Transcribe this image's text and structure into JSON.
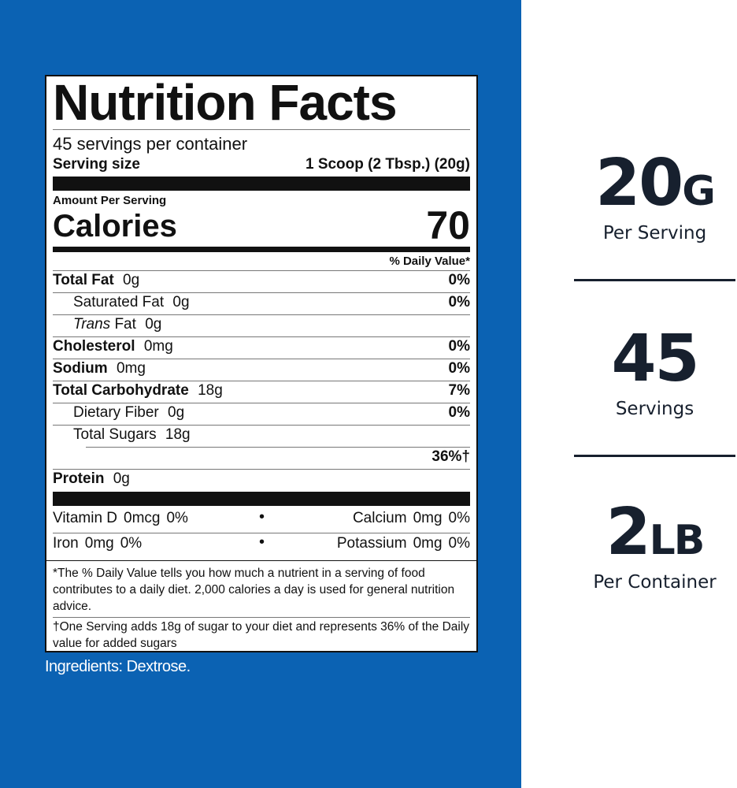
{
  "label": {
    "title": "Nutrition Facts",
    "servings": "45 servings per container",
    "serving_size_label": "Serving size",
    "serving_size": "1 Scoop (2 Tbsp.) (20g)",
    "amount_per_serving": "Amount Per Serving",
    "calories_label": "Calories",
    "calories": "70",
    "dv_header": "% Daily Value*",
    "nutrients": [
      {
        "name": "Total Fat",
        "amount": "0g",
        "dv": "0%"
      },
      {
        "name": "Saturated Fat",
        "amount": "0g",
        "dv": "0%"
      },
      {
        "name_italic": "Trans",
        "name": "Fat",
        "amount": "0g"
      },
      {
        "name": "Cholesterol",
        "amount": "0mg",
        "dv": "0%"
      },
      {
        "name": "Sodium",
        "amount": "0mg",
        "dv": "0%"
      },
      {
        "name": "Total Carbohydrate",
        "amount": "18g",
        "dv": "7%"
      },
      {
        "name": "Dietary Fiber",
        "amount": "0g",
        "dv": "0%"
      },
      {
        "name": "Total Sugars",
        "amount": "18g"
      },
      {
        "dv": "36%†"
      },
      {
        "name": "Protein",
        "amount": "0g"
      }
    ],
    "vitamins": [
      [
        {
          "name": "Vitamin D",
          "amount": "0mcg",
          "dv": "0%"
        },
        {
          "name": "Calcium",
          "amount": "0mg",
          "dv": "0%"
        }
      ],
      [
        {
          "name": "Iron",
          "amount": "0mg",
          "dv": "0%"
        },
        {
          "name": "Potassium",
          "amount": "0mg",
          "dv": "0%"
        }
      ]
    ],
    "footnote": "*The % Daily Value tells you how much a nutrient in a serving of food contributes to a daily diet.  2,000 calories a day is used for general nutrition advice.",
    "sugar_note": "†One Serving adds 18g of sugar to your diet and represents 36% of the Daily value for added sugars"
  },
  "ingredients": "Ingredients: Dextrose.",
  "stats": [
    {
      "value": "20",
      "unit": "G",
      "caption": "Per Serving"
    },
    {
      "value": "45",
      "caption": "Servings"
    },
    {
      "value": "2",
      "unit": "LB",
      "caption": "Per Container"
    }
  ]
}
